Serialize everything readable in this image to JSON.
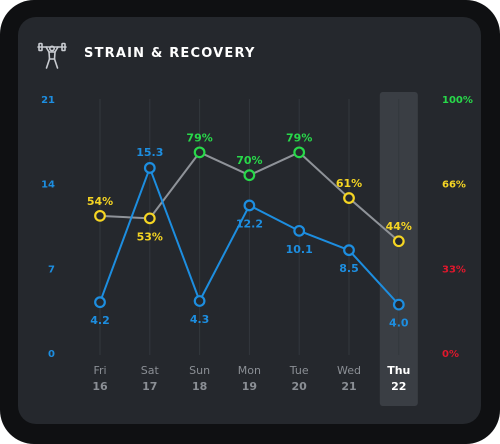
{
  "header": {
    "title": "STRAIN & RECOVERY",
    "icon": "weightlifter-icon"
  },
  "colors": {
    "strain": "#1d8ee0",
    "recovery_high": "#28d94a",
    "recovery_mid": "#f5d523",
    "recovery_low": "#e0182d",
    "recovery_line": "#8f9399",
    "highlight": "#3a3e44"
  },
  "chart_data": {
    "type": "line",
    "categories": [
      {
        "day": "Fri",
        "date": "16"
      },
      {
        "day": "Sat",
        "date": "17"
      },
      {
        "day": "Sun",
        "date": "18"
      },
      {
        "day": "Mon",
        "date": "19"
      },
      {
        "day": "Tue",
        "date": "20"
      },
      {
        "day": "Wed",
        "date": "21"
      },
      {
        "day": "Thu",
        "date": "22"
      }
    ],
    "highlighted_index": 6,
    "left_axis": {
      "ticks": [
        "0",
        "7",
        "14",
        "21"
      ],
      "range": [
        0,
        21
      ]
    },
    "right_axis": {
      "ticks": [
        "0%",
        "33%",
        "66%",
        "100%"
      ],
      "range": [
        0,
        100
      ]
    },
    "series": [
      {
        "axis": "left",
        "values": [
          4.2,
          15.3,
          4.3,
          12.2,
          10.1,
          8.5,
          4.0
        ],
        "labels": [
          "4.2",
          "15.3",
          "4.3",
          "12.2",
          "10.1",
          "8.5",
          "4.0"
        ]
      },
      {
        "axis": "right",
        "values": [
          54,
          53,
          79,
          70,
          79,
          61,
          44
        ],
        "labels": [
          "54%",
          "53%",
          "79%",
          "70%",
          "79%",
          "61%",
          "44%"
        ]
      }
    ]
  }
}
